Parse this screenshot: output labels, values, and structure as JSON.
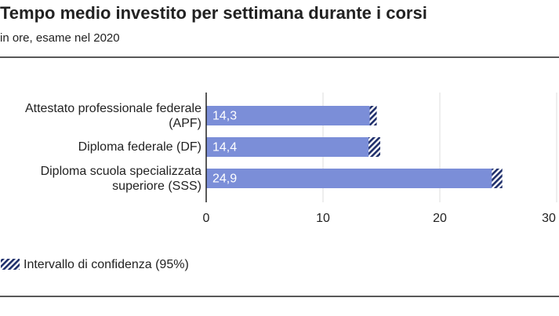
{
  "chart_data": {
    "type": "bar",
    "orientation": "horizontal",
    "title": "Tempo medio investito per settimana durante i corsi",
    "subtitle": "in ore, esame nel 2020",
    "categories": [
      "Attestato professionale federale (APF)",
      "Diploma federale (DF)",
      "Diploma scuola specializzata superiore (SSS)"
    ],
    "values": [
      14.3,
      14.4,
      24.9
    ],
    "value_labels": [
      "14,3",
      "14,4",
      "24,9"
    ],
    "errors": [
      0.3,
      0.5,
      0.45
    ],
    "error_label": "Intervallo di confidenza (95%)",
    "color": "#7b8ed8",
    "error_color": "#1f2f6b",
    "xlim": [
      0,
      30
    ],
    "xticks": [
      0,
      10,
      20,
      30
    ],
    "grid": true
  }
}
